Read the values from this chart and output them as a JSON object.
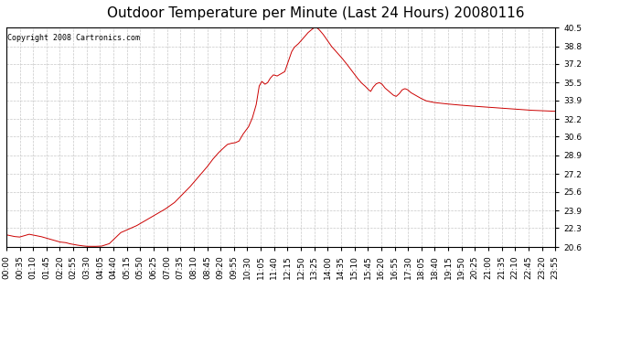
{
  "title": "Outdoor Temperature per Minute (Last 24 Hours) 20080116",
  "copyright_text": "Copyright 2008 Cartronics.com",
  "line_color": "#cc0000",
  "background_color": "#ffffff",
  "plot_bg_color": "#ffffff",
  "grid_color": "#c8c8c8",
  "yticks": [
    20.6,
    22.3,
    23.9,
    25.6,
    27.2,
    28.9,
    30.6,
    32.2,
    33.9,
    35.5,
    37.2,
    38.8,
    40.5
  ],
  "ylim": [
    20.6,
    40.5
  ],
  "title_fontsize": 11,
  "tick_fontsize": 6.5,
  "copyright_fontsize": 6,
  "x_tick_labels": [
    "00:00",
    "00:35",
    "01:10",
    "01:45",
    "02:20",
    "02:55",
    "03:30",
    "04:05",
    "04:40",
    "05:15",
    "05:50",
    "06:25",
    "07:00",
    "07:35",
    "08:10",
    "08:45",
    "09:20",
    "09:55",
    "10:30",
    "11:05",
    "11:40",
    "12:15",
    "12:50",
    "13:25",
    "14:00",
    "14:35",
    "15:10",
    "15:45",
    "16:20",
    "16:55",
    "17:30",
    "18:05",
    "18:40",
    "19:15",
    "19:50",
    "20:25",
    "21:00",
    "21:35",
    "22:10",
    "22:45",
    "23:20",
    "23:55"
  ],
  "key_points": [
    [
      0,
      21.7
    ],
    [
      20,
      21.55
    ],
    [
      35,
      21.5
    ],
    [
      60,
      21.75
    ],
    [
      75,
      21.65
    ],
    [
      90,
      21.55
    ],
    [
      100,
      21.45
    ],
    [
      110,
      21.35
    ],
    [
      120,
      21.25
    ],
    [
      140,
      21.05
    ],
    [
      155,
      21.0
    ],
    [
      165,
      20.9
    ],
    [
      180,
      20.8
    ],
    [
      195,
      20.72
    ],
    [
      210,
      20.66
    ],
    [
      230,
      20.65
    ],
    [
      250,
      20.68
    ],
    [
      270,
      20.9
    ],
    [
      285,
      21.4
    ],
    [
      300,
      21.9
    ],
    [
      320,
      22.2
    ],
    [
      340,
      22.5
    ],
    [
      365,
      23.0
    ],
    [
      390,
      23.5
    ],
    [
      415,
      24.0
    ],
    [
      440,
      24.6
    ],
    [
      460,
      25.3
    ],
    [
      480,
      26.0
    ],
    [
      500,
      26.8
    ],
    [
      510,
      27.2
    ],
    [
      525,
      27.8
    ],
    [
      540,
      28.5
    ],
    [
      555,
      29.1
    ],
    [
      570,
      29.6
    ],
    [
      580,
      29.9
    ],
    [
      590,
      30.0
    ],
    [
      600,
      30.05
    ],
    [
      610,
      30.2
    ],
    [
      620,
      30.8
    ],
    [
      635,
      31.5
    ],
    [
      645,
      32.3
    ],
    [
      655,
      33.5
    ],
    [
      663,
      35.2
    ],
    [
      670,
      35.6
    ],
    [
      678,
      35.35
    ],
    [
      685,
      35.5
    ],
    [
      692,
      35.9
    ],
    [
      700,
      36.2
    ],
    [
      710,
      36.1
    ],
    [
      720,
      36.3
    ],
    [
      730,
      36.5
    ],
    [
      740,
      37.5
    ],
    [
      748,
      38.3
    ],
    [
      755,
      38.7
    ],
    [
      765,
      39.0
    ],
    [
      778,
      39.5
    ],
    [
      790,
      40.0
    ],
    [
      800,
      40.3
    ],
    [
      808,
      40.5
    ],
    [
      815,
      40.45
    ],
    [
      820,
      40.3
    ],
    [
      830,
      39.9
    ],
    [
      840,
      39.4
    ],
    [
      852,
      38.8
    ],
    [
      865,
      38.3
    ],
    [
      878,
      37.8
    ],
    [
      892,
      37.2
    ],
    [
      905,
      36.6
    ],
    [
      918,
      36.0
    ],
    [
      930,
      35.5
    ],
    [
      940,
      35.2
    ],
    [
      948,
      34.9
    ],
    [
      955,
      34.7
    ],
    [
      962,
      35.1
    ],
    [
      970,
      35.4
    ],
    [
      978,
      35.5
    ],
    [
      985,
      35.35
    ],
    [
      993,
      35.0
    ],
    [
      1000,
      34.8
    ],
    [
      1008,
      34.55
    ],
    [
      1015,
      34.35
    ],
    [
      1022,
      34.25
    ],
    [
      1030,
      34.5
    ],
    [
      1038,
      34.85
    ],
    [
      1045,
      34.95
    ],
    [
      1052,
      34.85
    ],
    [
      1060,
      34.6
    ],
    [
      1070,
      34.4
    ],
    [
      1085,
      34.1
    ],
    [
      1100,
      33.85
    ],
    [
      1120,
      33.7
    ],
    [
      1145,
      33.6
    ],
    [
      1175,
      33.5
    ],
    [
      1210,
      33.4
    ],
    [
      1250,
      33.3
    ],
    [
      1290,
      33.2
    ],
    [
      1330,
      33.1
    ],
    [
      1370,
      33.0
    ],
    [
      1405,
      32.95
    ],
    [
      1439,
      32.9
    ]
  ]
}
